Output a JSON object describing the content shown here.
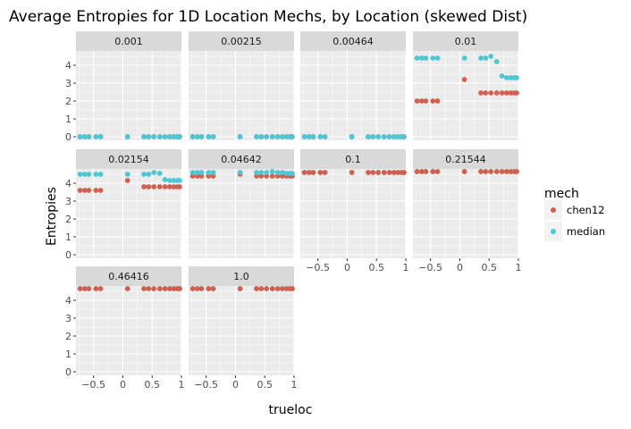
{
  "chart_data": {
    "type": "scatter",
    "title": "Average Entropies for 1D Location Mechs, by Location (skewed Dist)",
    "xlabel": "trueloc",
    "ylabel": "Entropies",
    "xlim": [
      -0.8,
      1.0
    ],
    "ylim": [
      -0.2,
      4.8
    ],
    "x_ticks": [
      -0.5,
      0,
      0.5,
      1
    ],
    "x_tick_labels": [
      "−0.5",
      "0",
      "0.5",
      "1"
    ],
    "y_ticks": [
      0,
      1,
      2,
      3,
      4
    ],
    "y_tick_labels": [
      "0",
      "1",
      "2",
      "3",
      "4"
    ],
    "grid": true,
    "facet_by": "location",
    "legend": {
      "title": "mech",
      "position": "right",
      "entries": [
        {
          "name": "chen12",
          "color": "#d0604f"
        },
        {
          "name": "median",
          "color": "#4fc6d2"
        }
      ]
    },
    "x": [
      -0.73,
      -0.65,
      -0.58,
      -0.46,
      -0.38,
      0.08,
      0.36,
      0.44,
      0.53,
      0.63,
      0.72,
      0.8,
      0.87,
      0.93,
      0.97
    ],
    "panels": [
      {
        "label": "0.001",
        "series": [
          {
            "name": "chen12",
            "y": [
              0,
              0,
              0,
              0,
              0,
              0,
              0,
              0,
              0,
              0,
              0,
              0,
              0,
              0,
              0
            ]
          },
          {
            "name": "median",
            "y": [
              0,
              0,
              0,
              0,
              0,
              0,
              0,
              0,
              0,
              0,
              0,
              0,
              0,
              0,
              0
            ]
          }
        ]
      },
      {
        "label": "0.00215",
        "series": [
          {
            "name": "chen12",
            "y": [
              0,
              0,
              0,
              0,
              0,
              0,
              0,
              0,
              0,
              0,
              0,
              0,
              0,
              0,
              0
            ]
          },
          {
            "name": "median",
            "y": [
              0,
              0,
              0,
              0,
              0,
              0,
              0,
              0,
              0,
              0,
              0,
              0,
              0,
              0,
              0
            ]
          }
        ]
      },
      {
        "label": "0.00464",
        "series": [
          {
            "name": "chen12",
            "y": [
              0,
              0,
              0,
              0,
              0,
              0,
              0,
              0,
              0,
              0,
              0,
              0,
              0,
              0,
              0
            ]
          },
          {
            "name": "median",
            "y": [
              0,
              0,
              0,
              0,
              0,
              0,
              0,
              0,
              0,
              0,
              0,
              0,
              0,
              0,
              0
            ]
          }
        ]
      },
      {
        "label": "0.01",
        "series": [
          {
            "name": "chen12",
            "y": [
              2.0,
              2.0,
              2.0,
              2.0,
              2.0,
              3.2,
              2.45,
              2.45,
              2.45,
              2.45,
              2.45,
              2.45,
              2.45,
              2.45,
              2.45
            ]
          },
          {
            "name": "median",
            "y": [
              4.4,
              4.4,
              4.4,
              4.4,
              4.4,
              4.4,
              4.4,
              4.4,
              4.5,
              4.2,
              3.4,
              3.3,
              3.3,
              3.3,
              3.3
            ]
          }
        ]
      },
      {
        "label": "0.02154",
        "series": [
          {
            "name": "chen12",
            "y": [
              3.6,
              3.6,
              3.6,
              3.6,
              3.6,
              4.15,
              3.8,
              3.8,
              3.8,
              3.8,
              3.8,
              3.8,
              3.8,
              3.8,
              3.8
            ]
          },
          {
            "name": "median",
            "y": [
              4.5,
              4.5,
              4.5,
              4.5,
              4.5,
              4.5,
              4.5,
              4.5,
              4.6,
              4.55,
              4.2,
              4.15,
              4.15,
              4.15,
              4.15
            ]
          }
        ]
      },
      {
        "label": "0.04642",
        "series": [
          {
            "name": "chen12",
            "y": [
              4.4,
              4.4,
              4.4,
              4.4,
              4.4,
              4.5,
              4.4,
              4.4,
              4.4,
              4.4,
              4.4,
              4.4,
              4.4,
              4.4,
              4.4
            ]
          },
          {
            "name": "median",
            "y": [
              4.6,
              4.6,
              4.6,
              4.6,
              4.6,
              4.6,
              4.6,
              4.6,
              4.6,
              4.65,
              4.6,
              4.6,
              4.55,
              4.55,
              4.55
            ]
          }
        ]
      },
      {
        "label": "0.1",
        "series": [
          {
            "name": "median",
            "y": [
              4.6,
              4.6,
              4.6,
              4.6,
              4.6,
              4.6,
              4.6,
              4.6,
              4.6,
              4.6,
              4.6,
              4.6,
              4.6,
              4.6,
              4.6
            ]
          },
          {
            "name": "chen12",
            "y": [
              4.6,
              4.6,
              4.6,
              4.6,
              4.6,
              4.6,
              4.6,
              4.6,
              4.6,
              4.6,
              4.6,
              4.6,
              4.6,
              4.6,
              4.6
            ]
          }
        ]
      },
      {
        "label": "0.21544",
        "series": [
          {
            "name": "median",
            "y": [
              4.65,
              4.65,
              4.65,
              4.65,
              4.65,
              4.65,
              4.65,
              4.65,
              4.65,
              4.65,
              4.65,
              4.65,
              4.65,
              4.65,
              4.65
            ]
          },
          {
            "name": "chen12",
            "y": [
              4.65,
              4.65,
              4.65,
              4.65,
              4.65,
              4.65,
              4.65,
              4.65,
              4.65,
              4.65,
              4.65,
              4.65,
              4.65,
              4.65,
              4.65
            ]
          }
        ]
      },
      {
        "label": "0.46416",
        "series": [
          {
            "name": "median",
            "y": [
              4.65,
              4.65,
              4.65,
              4.65,
              4.65,
              4.65,
              4.65,
              4.65,
              4.65,
              4.65,
              4.65,
              4.65,
              4.65,
              4.65,
              4.65
            ]
          },
          {
            "name": "chen12",
            "y": [
              4.65,
              4.65,
              4.65,
              4.65,
              4.65,
              4.65,
              4.65,
              4.65,
              4.65,
              4.65,
              4.65,
              4.65,
              4.65,
              4.65,
              4.65
            ]
          }
        ]
      },
      {
        "label": "1.0",
        "series": [
          {
            "name": "median",
            "y": [
              4.65,
              4.65,
              4.65,
              4.65,
              4.65,
              4.65,
              4.65,
              4.65,
              4.65,
              4.65,
              4.65,
              4.65,
              4.65,
              4.65,
              4.65
            ]
          },
          {
            "name": "chen12",
            "y": [
              4.65,
              4.65,
              4.65,
              4.65,
              4.65,
              4.65,
              4.65,
              4.65,
              4.65,
              4.65,
              4.65,
              4.65,
              4.65,
              4.65,
              4.65
            ]
          }
        ]
      }
    ]
  }
}
